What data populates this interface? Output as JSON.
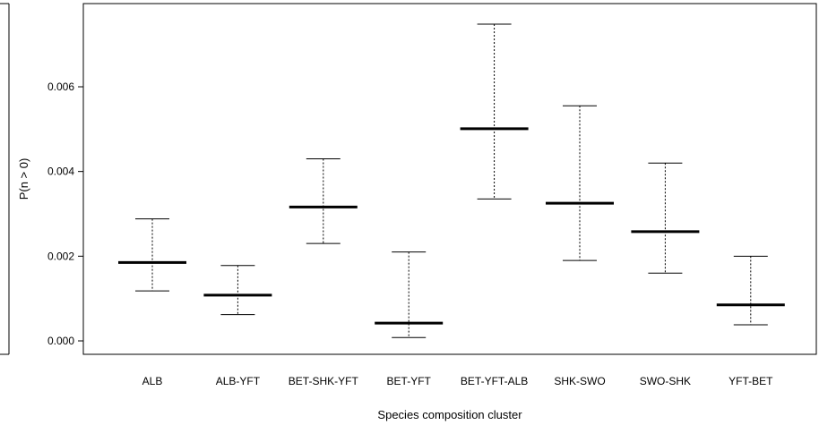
{
  "chart_data": {
    "type": "errorbar",
    "title": "",
    "xlabel": "Species composition cluster",
    "ylabel": "P(n > 0)",
    "categories": [
      "ALB",
      "ALB-YFT",
      "BET-SHK-YFT",
      "BET-YFT",
      "BET-YFT-ALB",
      "SHK-SWO",
      "SWO-SHK",
      "YFT-BET"
    ],
    "series": [
      {
        "estimate": [
          0.00185,
          0.00108,
          0.00316,
          0.00042,
          0.00501,
          0.00325,
          0.00258,
          0.00085
        ],
        "lower": [
          0.00118,
          0.00062,
          0.0023,
          8e-05,
          0.00335,
          0.0019,
          0.0016,
          0.00038
        ],
        "upper": [
          0.00288,
          0.00178,
          0.0043,
          0.0021,
          0.00748,
          0.00555,
          0.0042,
          0.002
        ]
      }
    ],
    "yticks": [
      0.0,
      0.002,
      0.004,
      0.006
    ],
    "ytick_labels": [
      "0.000",
      "0.002",
      "0.004",
      "0.006"
    ],
    "ylim": [
      0.0,
      0.0079
    ],
    "grid": false,
    "legend": "none"
  }
}
